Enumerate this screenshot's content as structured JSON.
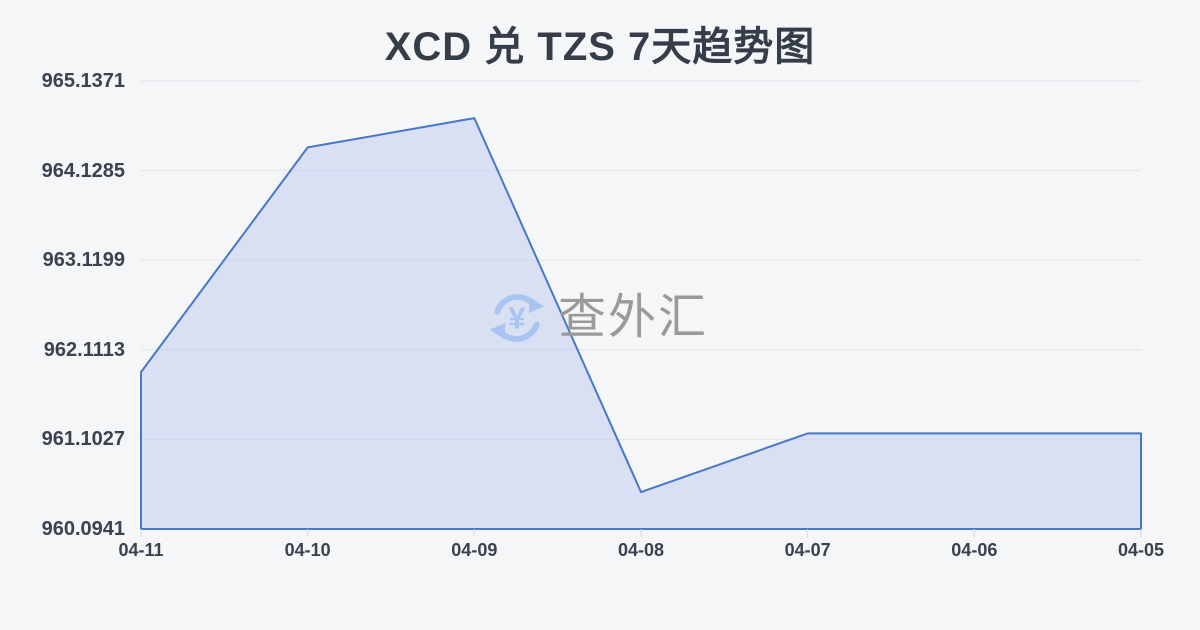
{
  "title": "XCD 兑 TZS 7天趋势图",
  "watermark": {
    "text": "查外汇",
    "icon": "yuan-refresh-icon",
    "icon_symbol": "¥"
  },
  "chart_data": {
    "type": "area",
    "title": "XCD 兑 TZS 7天趋势图",
    "categories": [
      "04-11",
      "04-10",
      "04-09",
      "04-08",
      "04-07",
      "04-06",
      "04-05"
    ],
    "values": [
      961.86,
      964.39,
      964.72,
      960.51,
      961.17,
      961.17,
      961.17
    ],
    "yticks": [
      {
        "value": 960.0941,
        "label": "960.0941"
      },
      {
        "value": 961.1027,
        "label": "961.1027"
      },
      {
        "value": 962.1113,
        "label": "962.1113"
      },
      {
        "value": 963.1199,
        "label": "963.1199"
      },
      {
        "value": 964.1285,
        "label": "964.1285"
      },
      {
        "value": 965.1371,
        "label": "965.1371"
      }
    ],
    "ylim": [
      960.0941,
      965.1371
    ],
    "xlabel": "",
    "ylabel": "",
    "grid": true,
    "legend": false,
    "colors": {
      "line": "#4677c8",
      "fill": "#bdcaf1",
      "fill_opacity": 0.5,
      "grid": "#e2e4e9",
      "tick": "#d8dade",
      "axis_text": "#3a4250",
      "title_text": "#363d4a",
      "watermark_text": "#9a9a9a",
      "watermark_icon": "#a8c4f0",
      "background": "#f5f6f7"
    }
  }
}
